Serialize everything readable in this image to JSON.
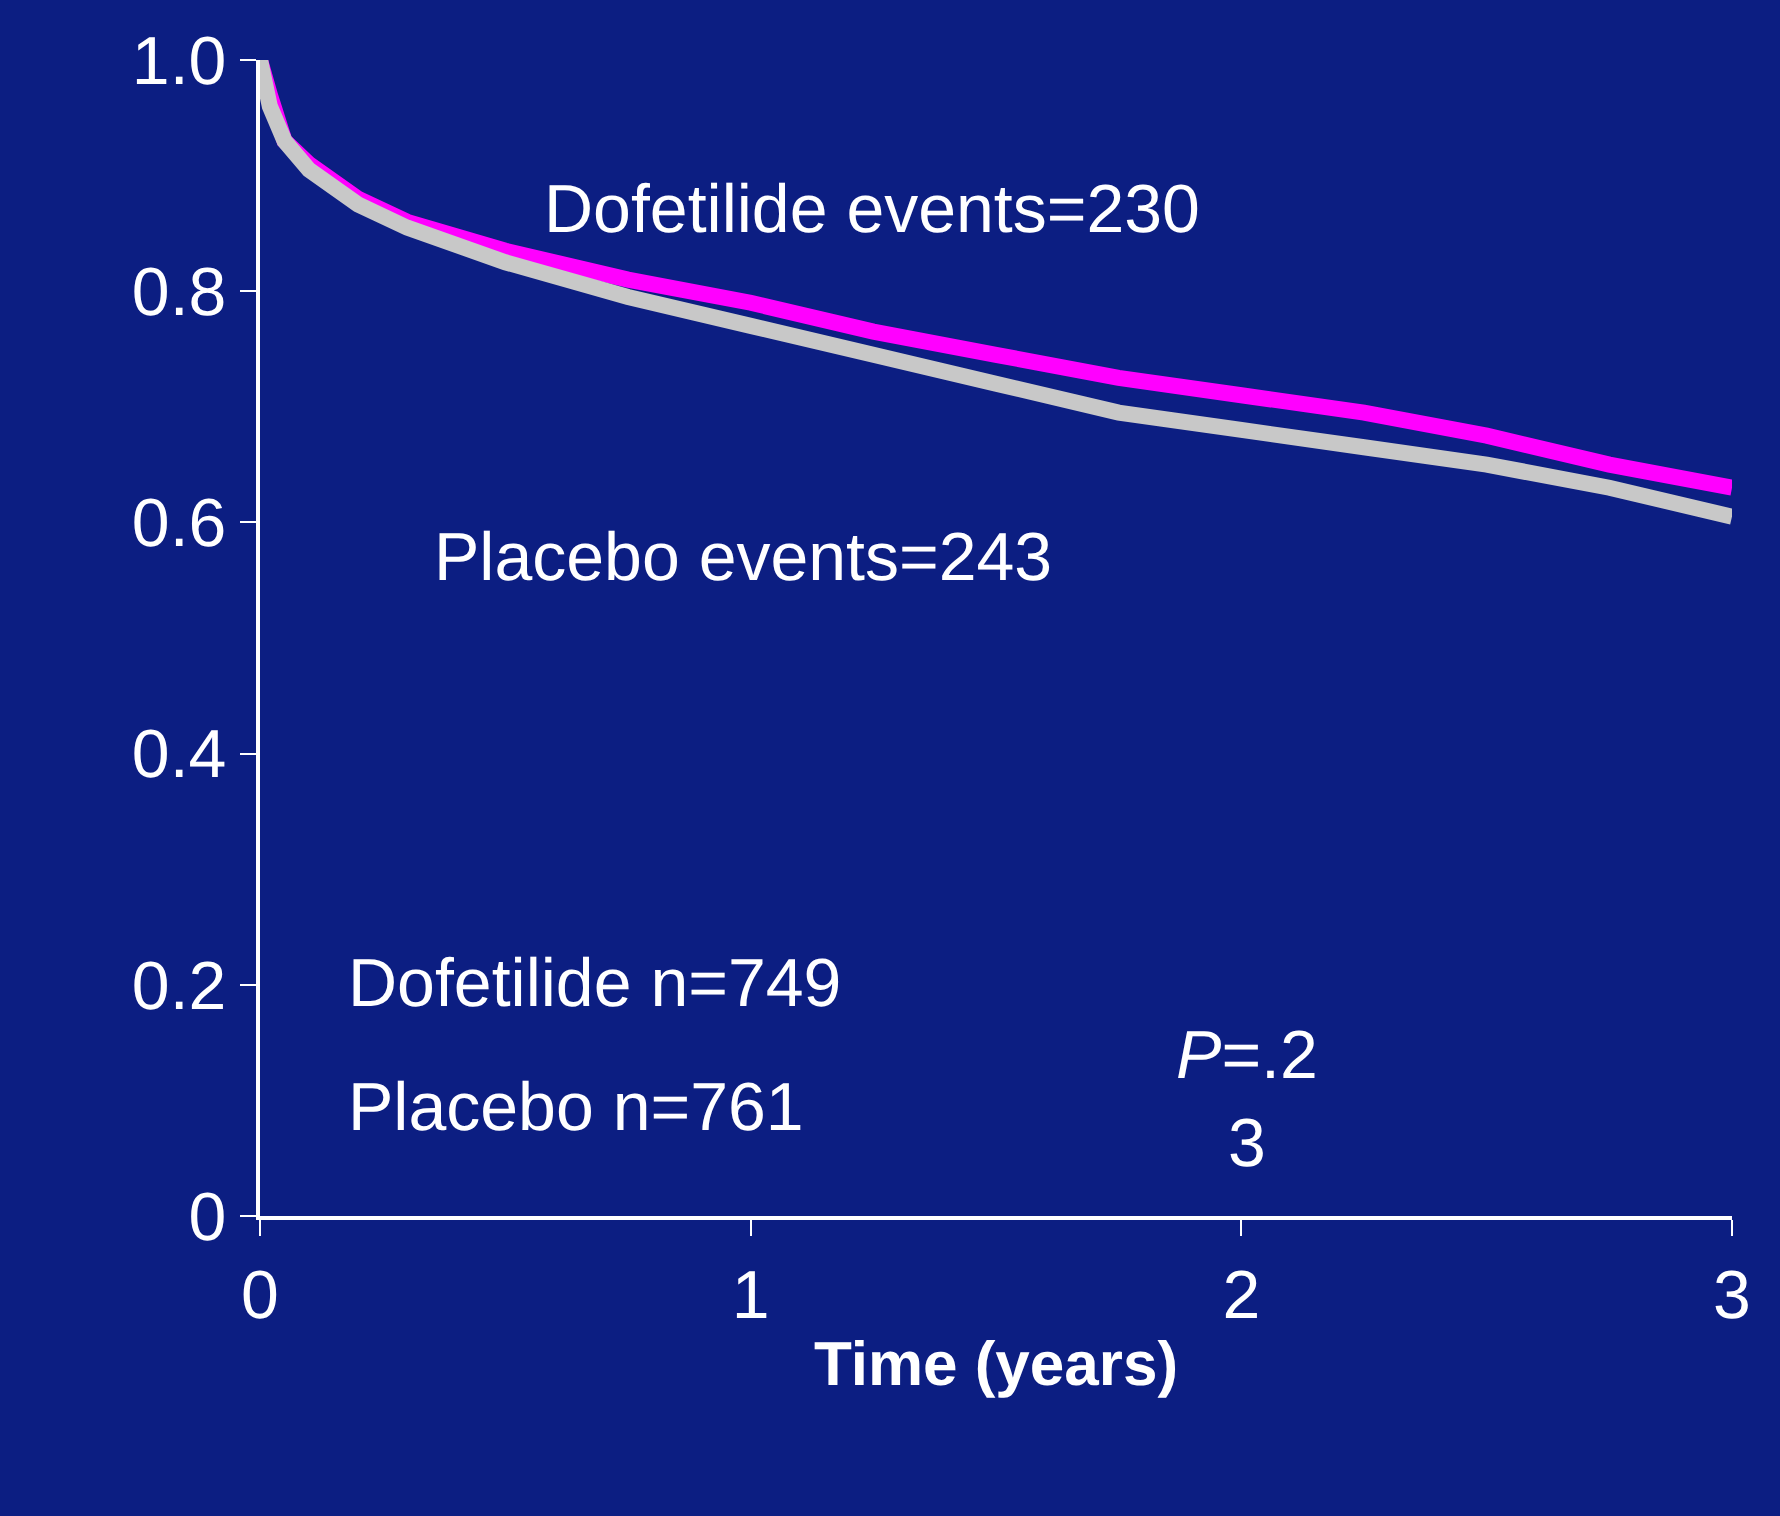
{
  "chart_data": {
    "type": "line",
    "xlabel": "Time (years)",
    "x": [
      0,
      0.02,
      0.05,
      0.1,
      0.2,
      0.3,
      0.5,
      0.75,
      1.0,
      1.25,
      1.5,
      1.75,
      2.0,
      2.25,
      2.5,
      2.75,
      3.0
    ],
    "series": [
      {
        "color": "#ff00ff",
        "values": [
          1.0,
          0.97,
          0.93,
          0.91,
          0.88,
          0.86,
          0.835,
          0.81,
          0.79,
          0.765,
          0.745,
          0.725,
          0.71,
          0.695,
          0.675,
          0.65,
          0.63
        ]
      },
      {
        "color": "#c8c8c8",
        "values": [
          1.0,
          0.96,
          0.93,
          0.905,
          0.875,
          0.855,
          0.825,
          0.795,
          0.77,
          0.745,
          0.72,
          0.695,
          0.68,
          0.665,
          0.65,
          0.63,
          0.605
        ]
      }
    ],
    "xlim": [
      0,
      3
    ],
    "xticks": [
      0,
      1,
      2,
      3
    ],
    "ylim": [
      0,
      1.0
    ],
    "yticks": [
      0,
      0.2,
      0.4,
      0.6,
      0.8,
      {
        "value": 1.0,
        "label": "1.0"
      }
    ],
    "grid": false,
    "legend": false,
    "marker": "none",
    "line_style": "solid",
    "annotations": [
      "Dofetilide events=230",
      "Placebo events=243",
      "Dofetilide n=749",
      "Placebo n=761",
      "P=.2\n3"
    ]
  }
}
